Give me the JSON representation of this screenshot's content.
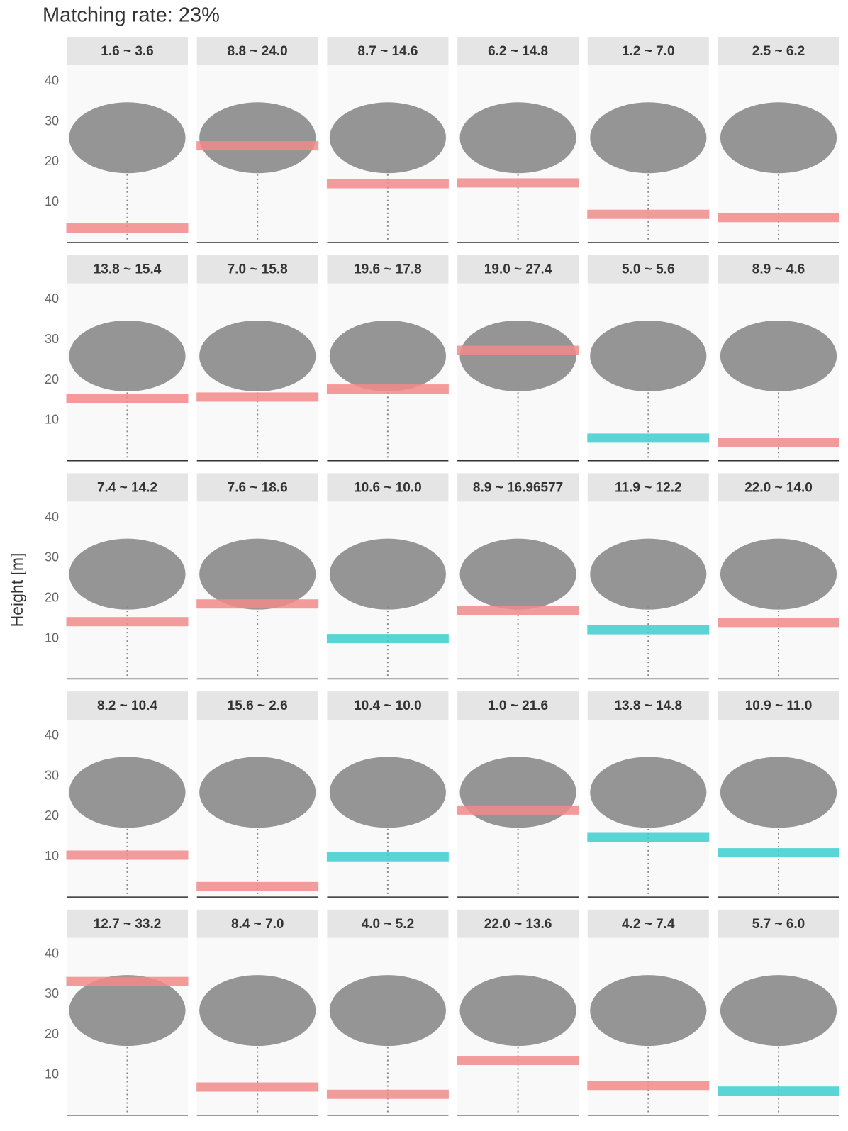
{
  "chart_data": {
    "type": "band",
    "title": "Matching rate: 23%",
    "ylabel": "Height [m]",
    "ylim": [
      0,
      44
    ],
    "yticks": [
      10,
      20,
      30,
      40
    ],
    "panels": [
      {
        "title": "1.6 ~ 3.6",
        "value": 3.6,
        "color": "#f28b8b"
      },
      {
        "title": "8.8 ~ 24.0",
        "value": 24.0,
        "color": "#f28b8b"
      },
      {
        "title": "8.7 ~ 14.6",
        "value": 14.6,
        "color": "#f28b8b"
      },
      {
        "title": "6.2 ~ 14.8",
        "value": 14.8,
        "color": "#f28b8b"
      },
      {
        "title": "1.2 ~ 7.0",
        "value": 7.0,
        "color": "#f28b8b"
      },
      {
        "title": "2.5 ~ 6.2",
        "value": 6.2,
        "color": "#f28b8b"
      },
      {
        "title": "13.8 ~ 15.4",
        "value": 15.4,
        "color": "#f28b8b"
      },
      {
        "title": "7.0 ~ 15.8",
        "value": 15.8,
        "color": "#f28b8b"
      },
      {
        "title": "19.6 ~ 17.8",
        "value": 17.8,
        "color": "#f28b8b"
      },
      {
        "title": "19.0 ~ 27.4",
        "value": 27.4,
        "color": "#f28b8b"
      },
      {
        "title": "5.0 ~ 5.6",
        "value": 5.6,
        "color": "#3fcfcf"
      },
      {
        "title": "8.9 ~ 4.6",
        "value": 4.6,
        "color": "#f28b8b"
      },
      {
        "title": "7.4 ~ 14.2",
        "value": 14.2,
        "color": "#f28b8b"
      },
      {
        "title": "7.6 ~ 18.6",
        "value": 18.6,
        "color": "#f28b8b"
      },
      {
        "title": "10.6 ~ 10.0",
        "value": 10.0,
        "color": "#3fcfcf"
      },
      {
        "title": "8.9 ~ 16.96577",
        "value": 16.96577,
        "color": "#f28b8b"
      },
      {
        "title": "11.9 ~ 12.2",
        "value": 12.2,
        "color": "#3fcfcf"
      },
      {
        "title": "22.0 ~ 14.0",
        "value": 14.0,
        "color": "#f28b8b"
      },
      {
        "title": "8.2 ~ 10.4",
        "value": 10.4,
        "color": "#f28b8b"
      },
      {
        "title": "15.6 ~ 2.6",
        "value": 2.6,
        "color": "#f28b8b"
      },
      {
        "title": "10.4 ~ 10.0",
        "value": 10.0,
        "color": "#3fcfcf"
      },
      {
        "title": "1.0 ~ 21.6",
        "value": 21.6,
        "color": "#f28b8b"
      },
      {
        "title": "13.8 ~ 14.8",
        "value": 14.8,
        "color": "#3fcfcf"
      },
      {
        "title": "10.9 ~ 11.0",
        "value": 11.0,
        "color": "#3fcfcf"
      },
      {
        "title": "12.7 ~ 33.2",
        "value": 33.2,
        "color": "#f28b8b"
      },
      {
        "title": "8.4 ~ 7.0",
        "value": 7.0,
        "color": "#f28b8b"
      },
      {
        "title": "4.0 ~ 5.2",
        "value": 5.2,
        "color": "#f28b8b"
      },
      {
        "title": "22.0 ~ 13.6",
        "value": 13.6,
        "color": "#f28b8b"
      },
      {
        "title": "4.2 ~ 7.4",
        "value": 7.4,
        "color": "#f28b8b"
      },
      {
        "title": "5.7 ~ 6.0",
        "value": 6.0,
        "color": "#3fcfcf"
      }
    ]
  }
}
